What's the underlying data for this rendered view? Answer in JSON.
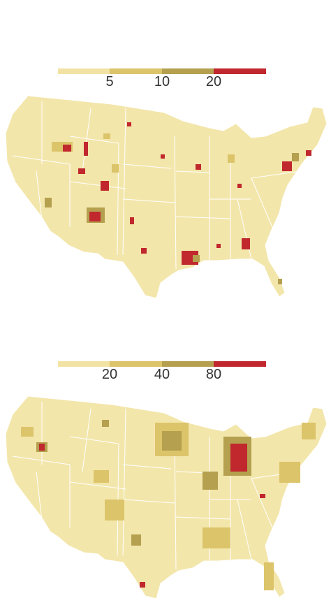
{
  "maps": [
    {
      "legend": {
        "colors": [
          "#f2e3a5",
          "#dcc46a",
          "#b4a04e",
          "#c0282e"
        ],
        "labels": [
          "5",
          "10",
          "20"
        ]
      }
    },
    {
      "legend": {
        "colors": [
          "#f2e3a5",
          "#dcc46a",
          "#b4a04e",
          "#c0282e"
        ],
        "labels": [
          "20",
          "40",
          "80"
        ]
      }
    }
  ],
  "style": {
    "base_fill": "#f3e6ab",
    "state_border": "#ffffff"
  }
}
